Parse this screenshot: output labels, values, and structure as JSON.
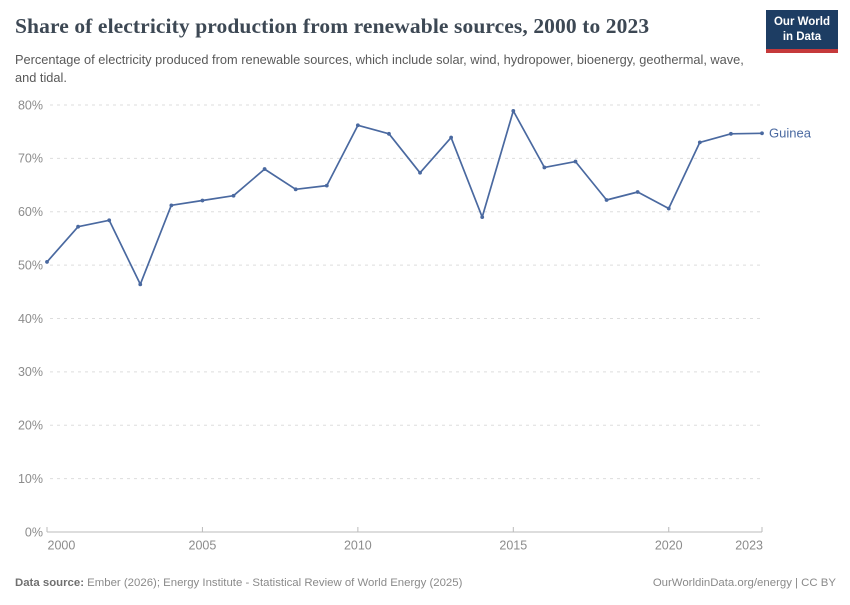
{
  "header": {
    "title": "Share of electricity production from renewable sources, 2000 to 2023",
    "subtitle": "Percentage of electricity produced from renewable sources, which include solar, wind, hydropower, bioenergy, geothermal, wave, and tidal.",
    "logo": {
      "line1": "Our World",
      "line2": "in Data",
      "bg_color": "#1d3d63",
      "accent_color": "#c5393b"
    }
  },
  "chart_data": {
    "type": "line",
    "title": "Share of electricity production from renewable sources, 2000 to 2023",
    "xlabel": "",
    "ylabel": "",
    "xlim": [
      2000,
      2023
    ],
    "ylim": [
      0,
      80
    ],
    "xticks": [
      2000,
      2005,
      2010,
      2015,
      2020,
      2023
    ],
    "yticks": [
      0,
      10,
      20,
      30,
      40,
      50,
      60,
      70,
      80
    ],
    "y_tick_suffix": "%",
    "grid": "horizontal-dashed",
    "legend_position": "end-of-line-label",
    "series": [
      {
        "name": "Guinea",
        "color": "#4a69a0",
        "x": [
          2000,
          2001,
          2002,
          2003,
          2004,
          2005,
          2006,
          2007,
          2008,
          2009,
          2010,
          2011,
          2012,
          2013,
          2014,
          2015,
          2016,
          2017,
          2018,
          2019,
          2020,
          2021,
          2022,
          2023
        ],
        "values": [
          50.6,
          57.2,
          58.4,
          46.4,
          61.2,
          62.1,
          63.0,
          68.0,
          64.2,
          64.9,
          76.2,
          74.6,
          67.3,
          73.9,
          59.0,
          78.9,
          68.3,
          69.4,
          62.2,
          63.7,
          60.6,
          73.0,
          74.6,
          74.7
        ]
      }
    ],
    "end_label": "Guinea",
    "axis_color": "#bbbbbb",
    "gridline_color": "#dddddd",
    "tick_label_color": "#8c8c8c"
  },
  "footer": {
    "datasource_label": "Data source:",
    "datasource_text": " Ember (2026); Energy Institute - Statistical Review of World Energy (2025)",
    "credit": "OurWorldinData.org/energy | CC BY"
  }
}
